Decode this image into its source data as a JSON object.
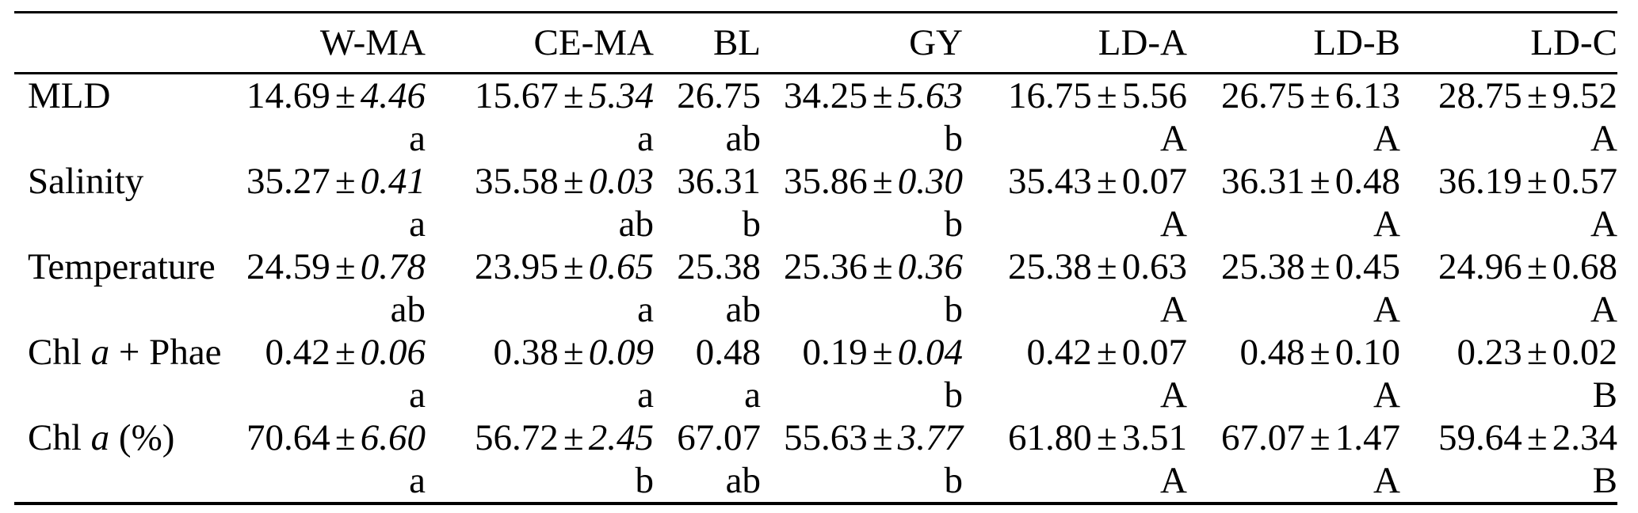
{
  "table": {
    "pm_symbol": "±",
    "columns": [
      "",
      "W-MA",
      "CE-MA",
      "BL",
      "GY",
      "LD-A",
      "LD-B",
      "LD-C"
    ],
    "rows": [
      {
        "label": {
          "pre": "MLD",
          "it": "",
          "post": ""
        },
        "cells": [
          {
            "mean": "14.69",
            "sd": "4.46",
            "sd_italic": true,
            "letter": "a"
          },
          {
            "mean": "15.67",
            "sd": "5.34",
            "sd_italic": true,
            "letter": "a"
          },
          {
            "mean": "26.75",
            "sd": "",
            "sd_italic": false,
            "letter": "ab"
          },
          {
            "mean": "34.25",
            "sd": "5.63",
            "sd_italic": true,
            "letter": "b"
          },
          {
            "mean": "16.75",
            "sd": "5.56",
            "sd_italic": false,
            "letter": "A"
          },
          {
            "mean": "26.75",
            "sd": "6.13",
            "sd_italic": false,
            "letter": "A"
          },
          {
            "mean": "28.75",
            "sd": "9.52",
            "sd_italic": false,
            "letter": "A"
          }
        ]
      },
      {
        "label": {
          "pre": "Salinity",
          "it": "",
          "post": ""
        },
        "cells": [
          {
            "mean": "35.27",
            "sd": "0.41",
            "sd_italic": true,
            "letter": "a"
          },
          {
            "mean": "35.58",
            "sd": "0.03",
            "sd_italic": true,
            "letter": "ab"
          },
          {
            "mean": "36.31",
            "sd": "",
            "sd_italic": false,
            "letter": "b"
          },
          {
            "mean": "35.86",
            "sd": "0.30",
            "sd_italic": true,
            "letter": "b"
          },
          {
            "mean": "35.43",
            "sd": "0.07",
            "sd_italic": false,
            "letter": "A"
          },
          {
            "mean": "36.31",
            "sd": "0.48",
            "sd_italic": false,
            "letter": "A"
          },
          {
            "mean": "36.19",
            "sd": "0.57",
            "sd_italic": false,
            "letter": "A"
          }
        ]
      },
      {
        "label": {
          "pre": "Temperature",
          "it": "",
          "post": ""
        },
        "cells": [
          {
            "mean": "24.59",
            "sd": "0.78",
            "sd_italic": true,
            "letter": "ab"
          },
          {
            "mean": "23.95",
            "sd": "0.65",
            "sd_italic": true,
            "letter": "a"
          },
          {
            "mean": "25.38",
            "sd": "",
            "sd_italic": false,
            "letter": "ab"
          },
          {
            "mean": "25.36",
            "sd": "0.36",
            "sd_italic": true,
            "letter": "b"
          },
          {
            "mean": "25.38",
            "sd": "0.63",
            "sd_italic": false,
            "letter": "A"
          },
          {
            "mean": "25.38",
            "sd": "0.45",
            "sd_italic": false,
            "letter": "A"
          },
          {
            "mean": "24.96",
            "sd": "0.68",
            "sd_italic": false,
            "letter": "A"
          }
        ]
      },
      {
        "label": {
          "pre": "Chl ",
          "it": "a",
          "post": " + Phae"
        },
        "cells": [
          {
            "mean": "0.42",
            "sd": "0.06",
            "sd_italic": true,
            "letter": "a"
          },
          {
            "mean": "0.38",
            "sd": "0.09",
            "sd_italic": true,
            "letter": "a"
          },
          {
            "mean": "0.48",
            "sd": "",
            "sd_italic": false,
            "letter": "a"
          },
          {
            "mean": "0.19",
            "sd": "0.04",
            "sd_italic": true,
            "letter": "b"
          },
          {
            "mean": "0.42",
            "sd": "0.07",
            "sd_italic": false,
            "letter": "A"
          },
          {
            "mean": "0.48",
            "sd": "0.10",
            "sd_italic": false,
            "letter": "A"
          },
          {
            "mean": "0.23",
            "sd": "0.02",
            "sd_italic": false,
            "letter": "B"
          }
        ]
      },
      {
        "label": {
          "pre": "Chl ",
          "it": "a",
          "post": " (%)"
        },
        "cells": [
          {
            "mean": "70.64",
            "sd": "6.60",
            "sd_italic": true,
            "letter": "a"
          },
          {
            "mean": "56.72",
            "sd": "2.45",
            "sd_italic": true,
            "letter": "b"
          },
          {
            "mean": "67.07",
            "sd": "",
            "sd_italic": false,
            "letter": "ab"
          },
          {
            "mean": "55.63",
            "sd": "3.77",
            "sd_italic": true,
            "letter": "b"
          },
          {
            "mean": "61.80",
            "sd": "3.51",
            "sd_italic": false,
            "letter": "A"
          },
          {
            "mean": "67.07",
            "sd": "1.47",
            "sd_italic": false,
            "letter": "A"
          },
          {
            "mean": "59.64",
            "sd": "2.34",
            "sd_italic": false,
            "letter": "B"
          }
        ]
      }
    ]
  }
}
